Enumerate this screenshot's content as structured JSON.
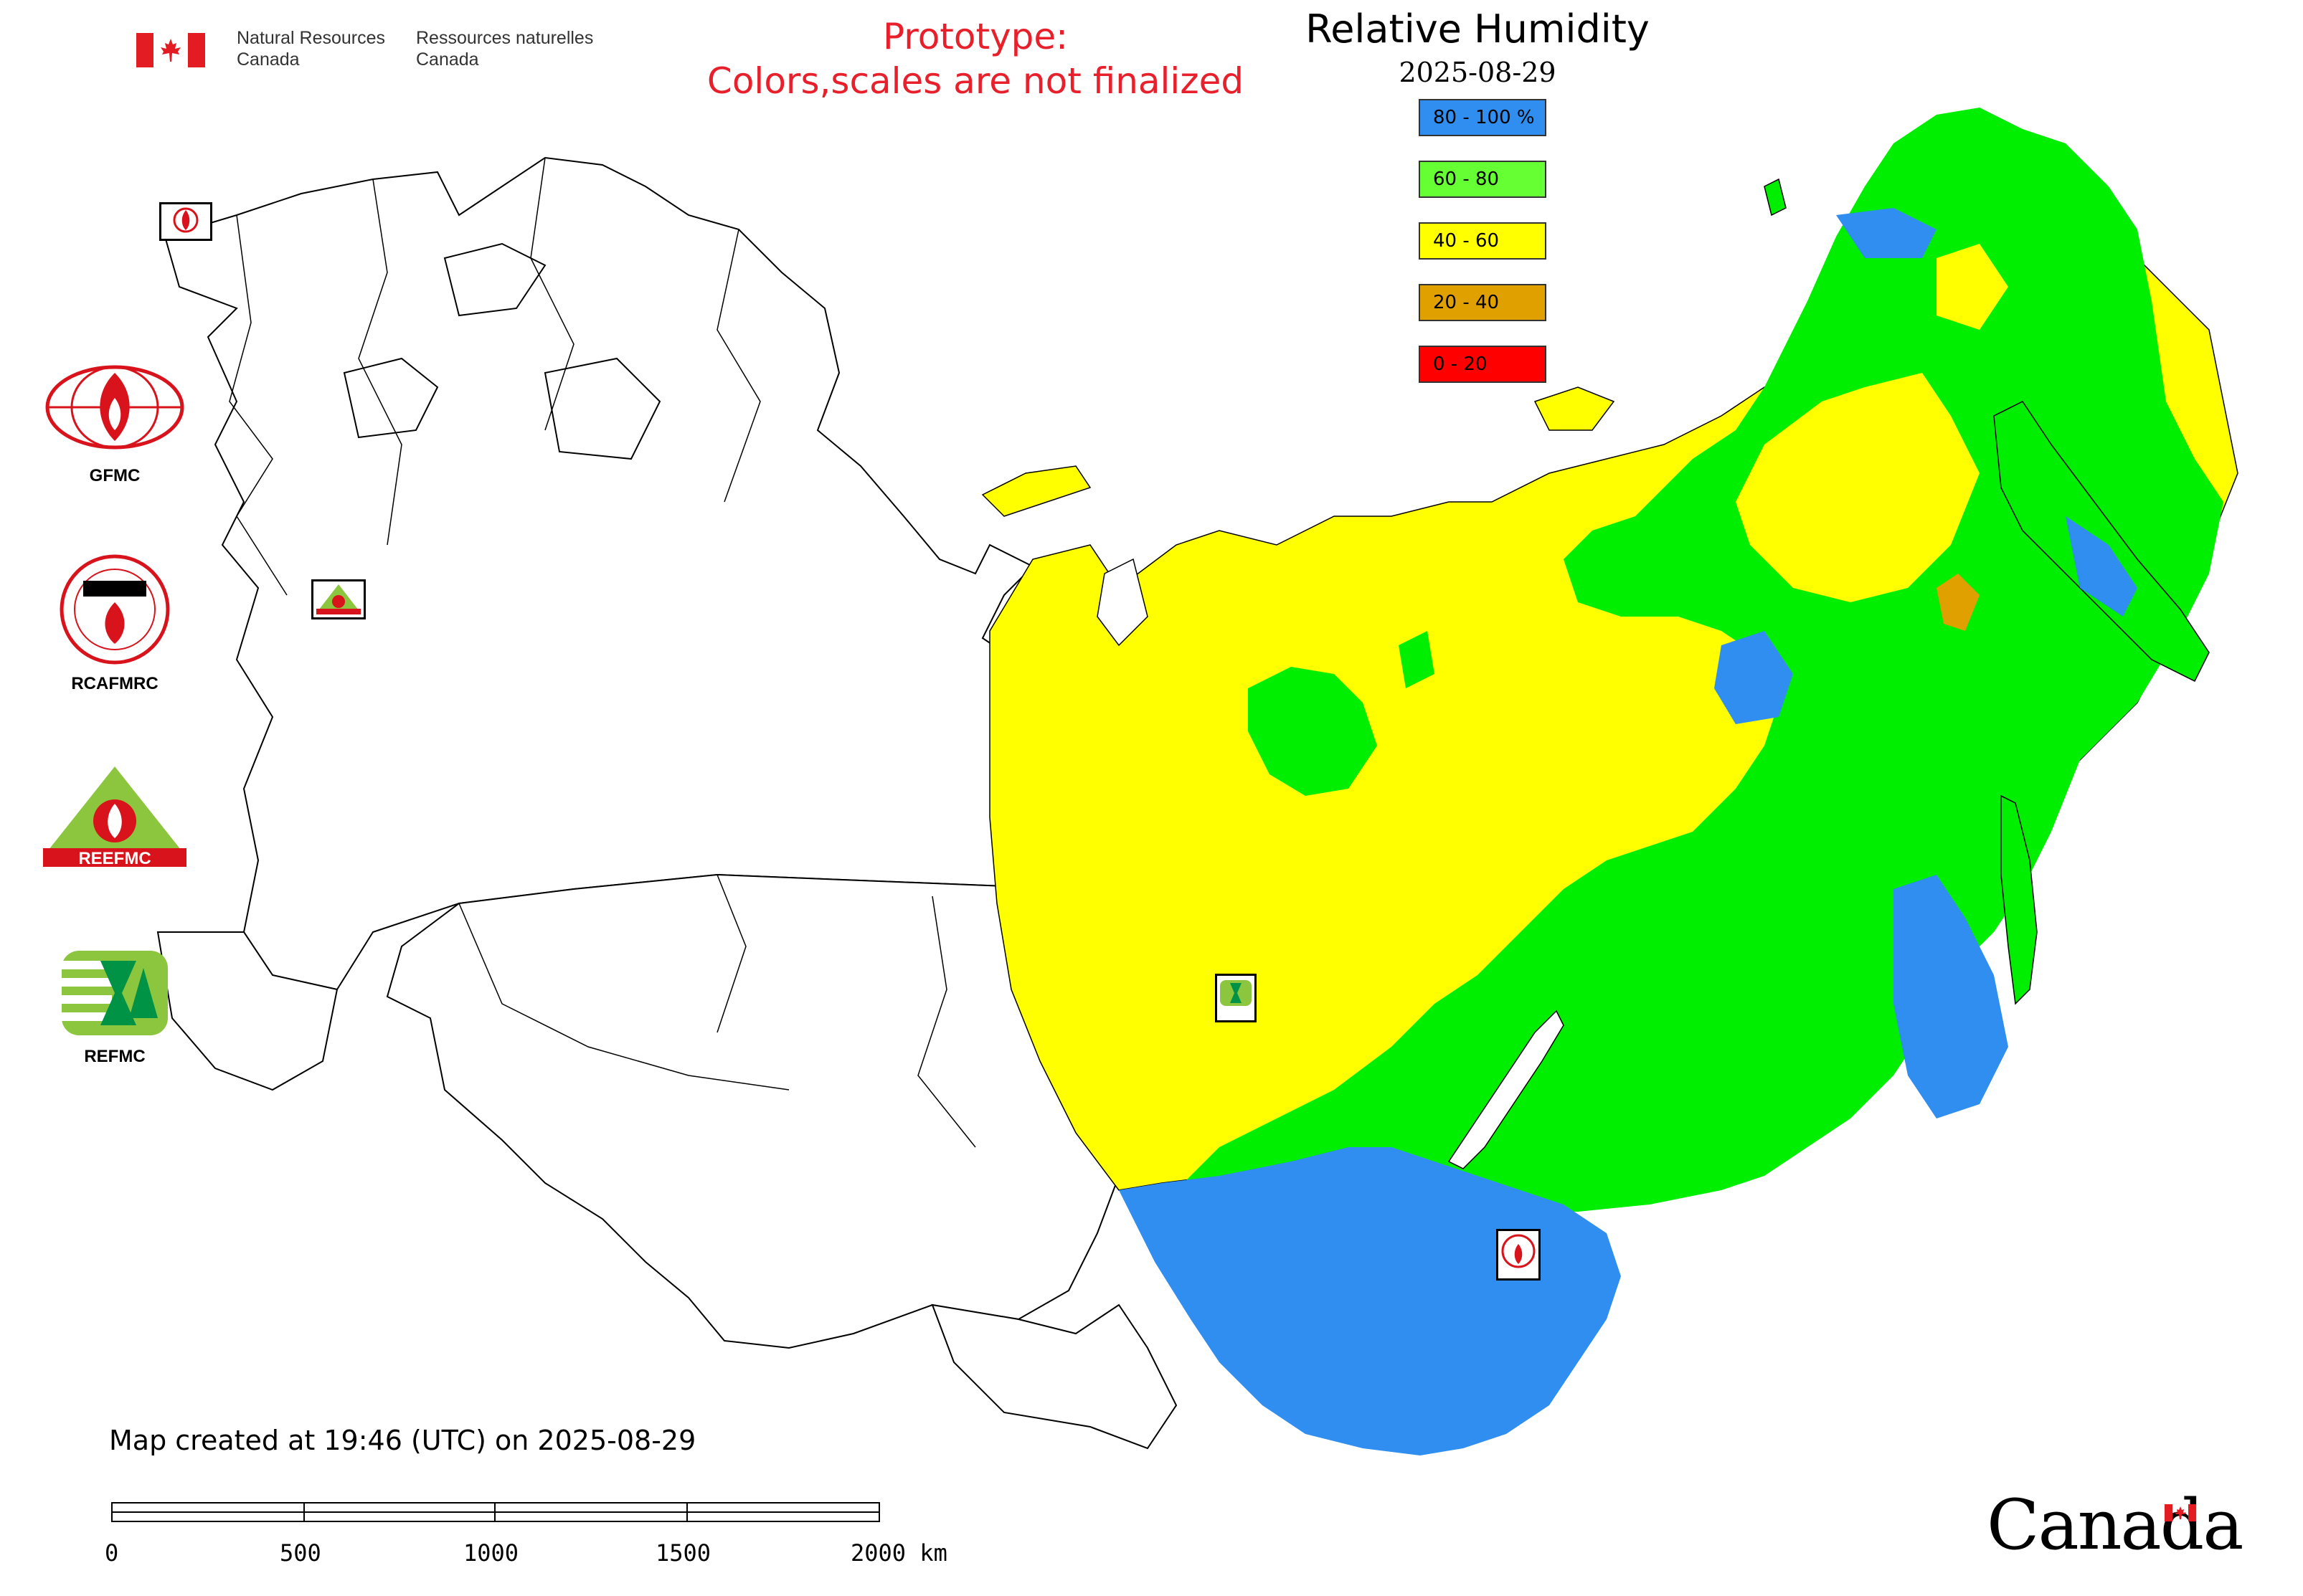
{
  "header": {
    "org_en": "Natural Resources\nCanada",
    "org_fr": "Ressources naturelles\nCanada"
  },
  "prototype_notice": {
    "line1": "Prototype:",
    "line2": "Colors,scales are not finalized"
  },
  "title": "Relative Humidity",
  "date": "2025-08-29",
  "legend": [
    {
      "label": "80 - 100 %",
      "color": "#2f8ef0"
    },
    {
      "label": "60 - 80",
      "color": "#66ff33"
    },
    {
      "label": "40 - 60",
      "color": "#ffff00"
    },
    {
      "label": "20 - 40",
      "color": "#e0a000"
    },
    {
      "label": "0 - 20",
      "color": "#ff0000"
    }
  ],
  "logos": [
    {
      "label": "GFMC",
      "icon": "gfmc-logo"
    },
    {
      "label": "RCAFMRC",
      "icon": "rcafmrc-logo"
    },
    {
      "label": "",
      "icon": "reefmc-logo"
    },
    {
      "label": "REFMC",
      "icon": "refmc-logo"
    }
  ],
  "map_markers": [
    {
      "icon": "gfmc-marker"
    },
    {
      "icon": "reefmc-marker"
    },
    {
      "icon": "refmc-marker"
    },
    {
      "icon": "rcafmrc-marker"
    }
  ],
  "created_note": "Map created at 19:46 (UTC) on 2025-08-29",
  "scale_bar": {
    "ticks": [
      "0",
      "500",
      "1000",
      "1500",
      "2000 km"
    ]
  },
  "wordmark": "Canada",
  "colors": {
    "humid_high": "#2f8ef0",
    "humid_mid": "#00ee00",
    "humid_low": "#ffff00",
    "accent_red": "#e8202c"
  }
}
